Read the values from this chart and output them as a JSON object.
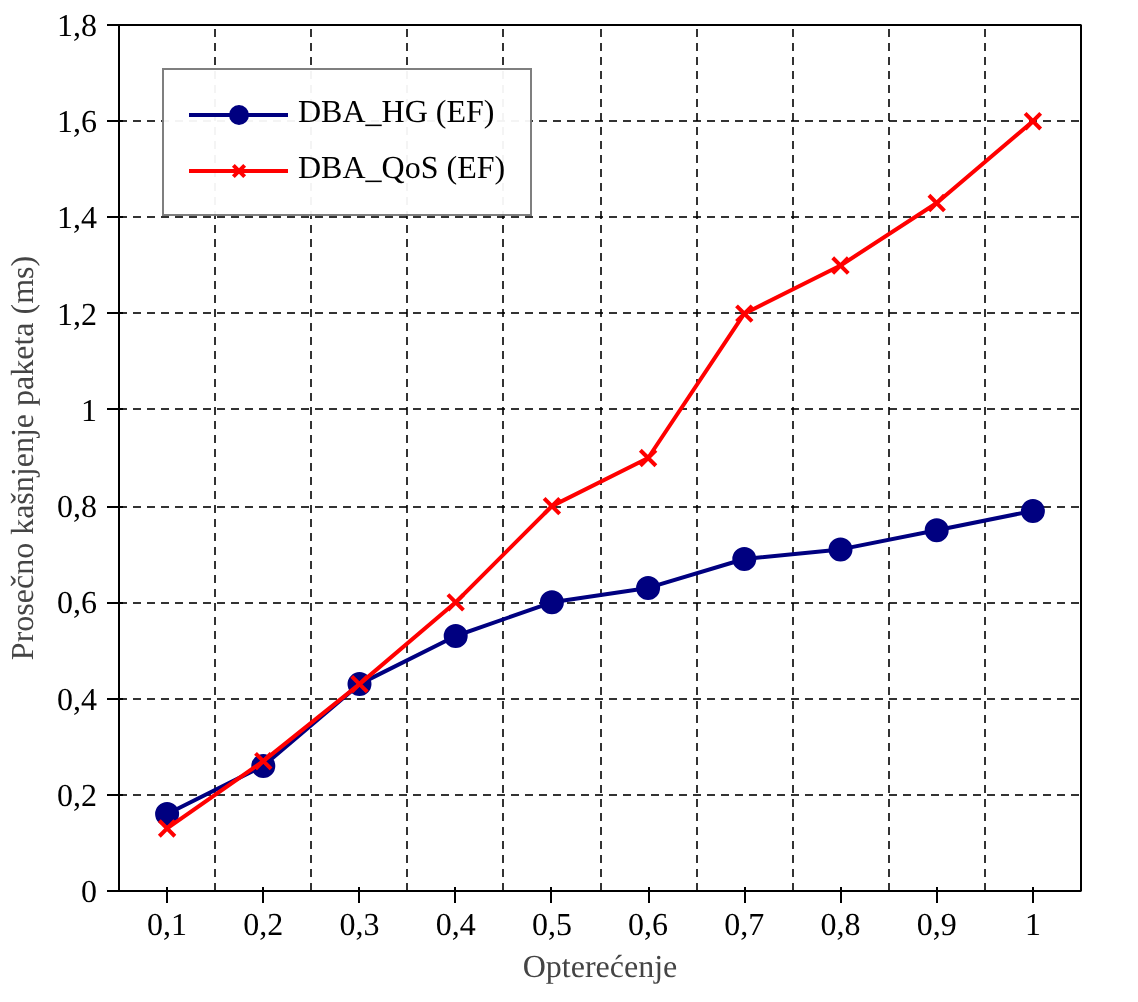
{
  "chart_data": {
    "type": "line",
    "xlabel": "Opterećenje",
    "ylabel": "Prosečno kašnjenje paketa (ms)",
    "categories": [
      "0,1",
      "0,2",
      "0,3",
      "0,4",
      "0,5",
      "0,6",
      "0,7",
      "0,8",
      "0,9",
      "1"
    ],
    "series": [
      {
        "name": "DBA_HG (EF)",
        "color": "#000080",
        "marker": "circle",
        "values": [
          0.16,
          0.26,
          0.43,
          0.53,
          0.6,
          0.63,
          0.69,
          0.71,
          0.75,
          0.79
        ]
      },
      {
        "name": "DBA_QoS (EF)",
        "color": "#ff0000",
        "marker": "cross",
        "values": [
          0.13,
          0.27,
          0.43,
          0.6,
          0.8,
          0.9,
          1.2,
          1.3,
          1.43,
          1.6
        ]
      }
    ],
    "ylim": [
      0,
      1.8
    ],
    "yticks": [
      {
        "value": 0,
        "label": "0"
      },
      {
        "value": 0.2,
        "label": "0,2"
      },
      {
        "value": 0.4,
        "label": "0,4"
      },
      {
        "value": 0.6,
        "label": "0,6"
      },
      {
        "value": 0.8,
        "label": "0,8"
      },
      {
        "value": 1,
        "label": "1"
      },
      {
        "value": 1.2,
        "label": "1,2"
      },
      {
        "value": 1.4,
        "label": "1,4"
      },
      {
        "value": 1.6,
        "label": "1,6"
      },
      {
        "value": 1.8,
        "label": "1,8"
      }
    ],
    "grid": true,
    "legend": "top left",
    "line_style": "solid"
  }
}
